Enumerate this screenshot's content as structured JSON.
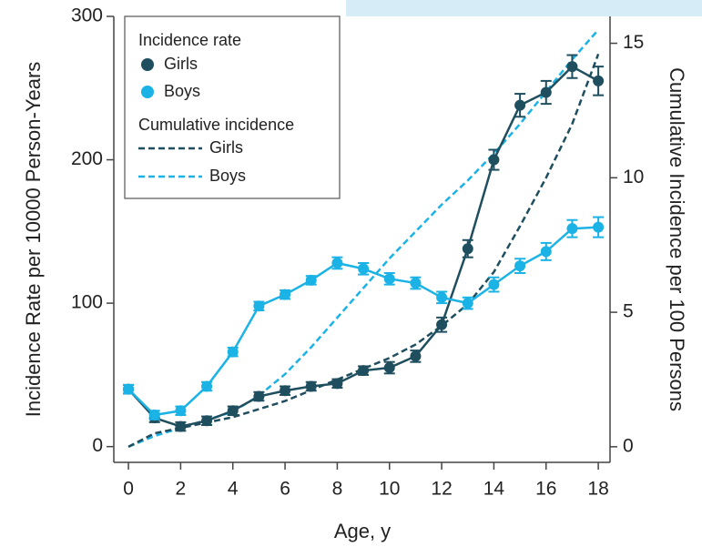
{
  "chart_data": {
    "type": "line",
    "x_label": "Age, y",
    "y_label": "Incidence Rate per 10000 Person-Years",
    "y2_label": "Cumulative Incidence per 100 Persons",
    "legend_titles": [
      "Incidence rate",
      "Cumulative incidence"
    ],
    "x": [
      0,
      1,
      2,
      3,
      4,
      5,
      6,
      7,
      8,
      9,
      10,
      11,
      12,
      13,
      14,
      15,
      16,
      17,
      18
    ],
    "xlim": [
      -0.56,
      18.45
    ],
    "xticks": [
      0,
      2,
      4,
      6,
      8,
      10,
      12,
      14,
      16,
      18
    ],
    "ylim": [
      -11,
      300
    ],
    "yticks": [
      0,
      100,
      200,
      300
    ],
    "y2lim": [
      -0.58,
      16
    ],
    "y2ticks": [
      0,
      5,
      10,
      15
    ],
    "series": [
      {
        "name": "Girls",
        "color": "#1f4e5f",
        "style": "solid",
        "values": [
          40,
          20,
          14,
          18,
          25,
          35,
          39,
          42,
          44,
          53,
          55,
          63,
          85,
          138,
          200,
          238,
          247,
          265,
          255
        ],
        "errors": [
          3,
          3,
          3,
          3,
          3,
          3,
          3,
          3,
          3,
          3,
          4,
          4,
          5,
          6,
          7,
          8,
          8,
          8,
          10
        ]
      },
      {
        "name": "Boys",
        "color": "#1bb3e6",
        "style": "solid",
        "values": [
          40,
          22,
          25,
          42,
          66,
          98,
          106,
          116,
          128,
          124,
          117,
          114,
          104,
          100,
          113,
          126,
          136,
          152,
          153
        ],
        "errors": [
          3,
          3,
          3,
          3,
          3,
          3,
          3,
          3,
          4,
          4,
          4,
          4,
          4,
          4,
          5,
          5,
          6,
          6,
          7
        ]
      },
      {
        "name": "Girls",
        "color": "#1f4e5f",
        "style": "dashed",
        "axis": "y2",
        "values": [
          0,
          0.5,
          0.7,
          0.9,
          1.1,
          1.4,
          1.7,
          2.1,
          2.5,
          2.9,
          3.3,
          3.8,
          4.5,
          5.3,
          6.5,
          8.2,
          10.0,
          12.0,
          14.6
        ]
      },
      {
        "name": "Boys",
        "color": "#1bb3e6",
        "style": "dashed",
        "axis": "y2",
        "values": [
          0,
          0.4,
          0.7,
          1.0,
          1.3,
          1.9,
          2.7,
          3.7,
          4.8,
          5.9,
          7.0,
          8.0,
          9.0,
          9.9,
          10.9,
          12.0,
          13.2,
          14.4,
          15.5
        ]
      }
    ]
  }
}
